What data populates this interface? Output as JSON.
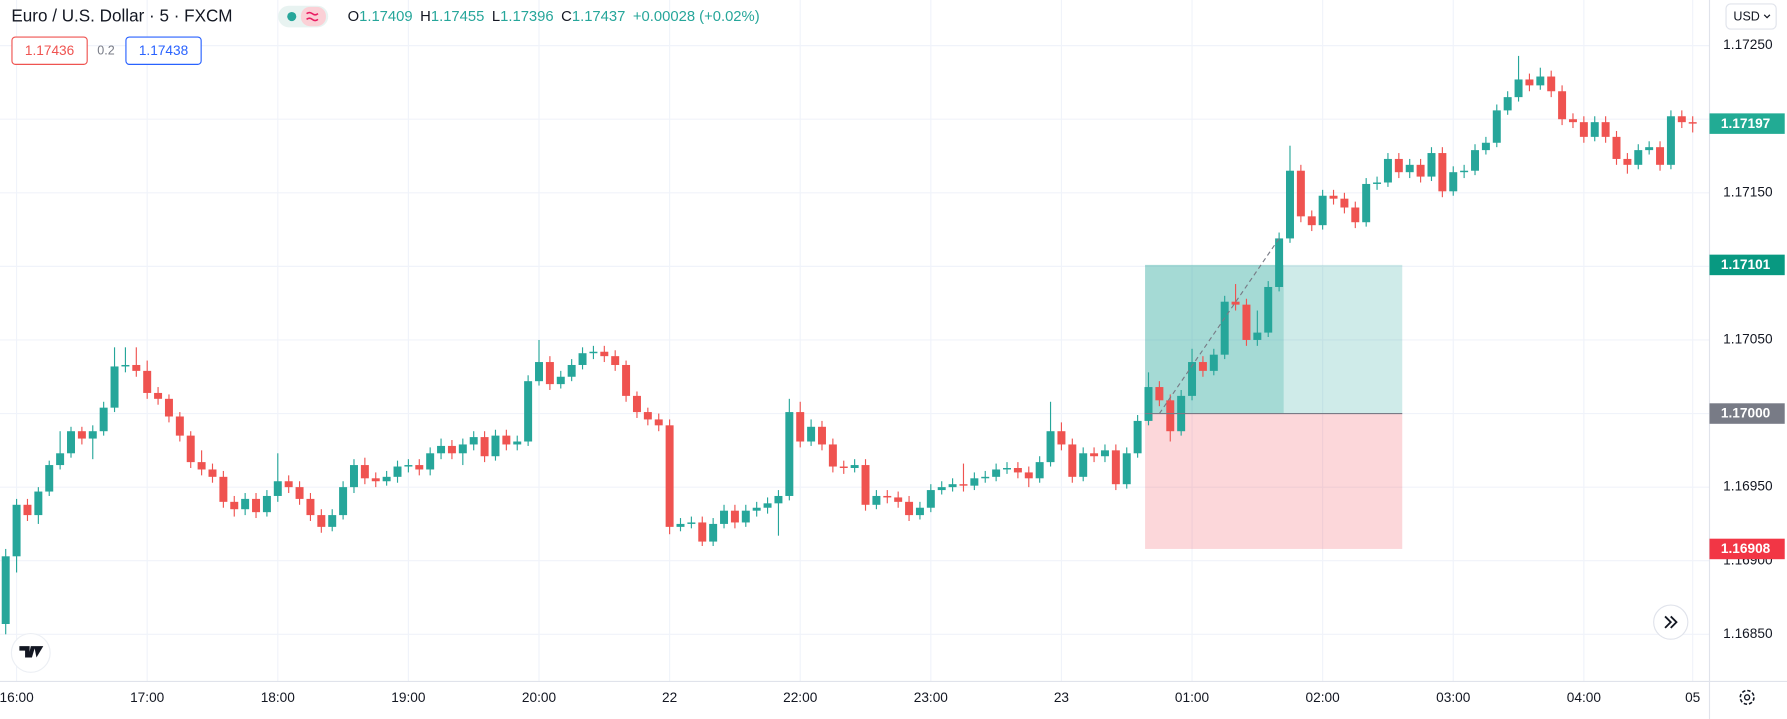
{
  "header": {
    "title": "Euro / U.S. Dollar · 5 · FXCM",
    "ohlc": [
      {
        "label": "O",
        "value": "1.17409"
      },
      {
        "label": "H",
        "value": "1.17455"
      },
      {
        "label": "L",
        "value": "1.17396"
      },
      {
        "label": "C",
        "value": "1.17437"
      }
    ],
    "change": "+0.00028 (+0.02%)",
    "quote": {
      "sell": "1.17436",
      "spread": "0.2",
      "buy": "1.17438"
    },
    "currency": "USD"
  },
  "chart_data": {
    "type": "candlestick",
    "up_color": "#26a69a",
    "down_color": "#ef5350",
    "grid": true,
    "ylim": [
      1.16818,
      1.17281
    ],
    "yticks": [
      {
        "value": 1.1725,
        "label": "1.17250"
      },
      {
        "value": 1.172,
        "label": "1.17200"
      },
      {
        "value": 1.1715,
        "label": "1.17150"
      },
      {
        "value": 1.171,
        "label": "1.17100"
      },
      {
        "value": 1.1705,
        "label": "1.17050"
      },
      {
        "value": 1.17,
        "label": "1.17000"
      },
      {
        "value": 1.1695,
        "label": "1.16950"
      },
      {
        "value": 1.169,
        "label": "1.16900"
      },
      {
        "value": 1.1685,
        "label": "1.16850"
      }
    ],
    "categories": [
      null,
      "16:00",
      null,
      null,
      null,
      null,
      null,
      null,
      null,
      null,
      null,
      null,
      null,
      "17:00",
      null,
      null,
      null,
      null,
      null,
      null,
      null,
      null,
      null,
      null,
      null,
      "18:00",
      null,
      null,
      null,
      null,
      null,
      null,
      null,
      null,
      null,
      null,
      null,
      "19:00",
      null,
      null,
      null,
      null,
      null,
      null,
      null,
      null,
      null,
      null,
      null,
      "20:00",
      null,
      null,
      null,
      null,
      null,
      null,
      null,
      null,
      null,
      null,
      null,
      "22",
      null,
      null,
      null,
      null,
      null,
      null,
      null,
      null,
      null,
      null,
      null,
      "22:00",
      null,
      null,
      null,
      null,
      null,
      null,
      null,
      null,
      null,
      null,
      null,
      "23:00",
      null,
      null,
      null,
      null,
      null,
      null,
      null,
      null,
      null,
      null,
      null,
      "23",
      null,
      null,
      null,
      null,
      null,
      null,
      null,
      null,
      null,
      null,
      null,
      "01:00",
      null,
      null,
      null,
      null,
      null,
      null,
      null,
      null,
      null,
      null,
      null,
      "02:00",
      null,
      null,
      null,
      null,
      null,
      null,
      null,
      null,
      null,
      null,
      null,
      "03:00",
      null,
      null,
      null,
      null,
      null,
      null,
      null,
      null,
      null,
      null,
      null,
      "04:00",
      null,
      null,
      null,
      null,
      null,
      null,
      null,
      null,
      null,
      "05"
    ],
    "open": [
      1.16857,
      1.16903,
      1.16938,
      1.16931,
      1.16947,
      1.16965,
      1.16973,
      1.16988,
      1.16983,
      1.16988,
      1.17004,
      1.17032,
      1.17033,
      1.17029,
      1.17014,
      1.1701,
      1.16998,
      1.16985,
      1.16967,
      1.16962,
      1.16957,
      1.1694,
      1.16935,
      1.16942,
      1.16933,
      1.16944,
      1.16954,
      1.1695,
      1.16942,
      1.16931,
      1.16923,
      1.16931,
      1.1695,
      1.16965,
      1.16956,
      1.16954,
      1.16957,
      1.16964,
      1.16965,
      1.16962,
      1.16973,
      1.16978,
      1.16973,
      1.16979,
      1.16984,
      1.16971,
      1.16985,
      1.16979,
      1.16981,
      1.17022,
      1.17035,
      1.1702,
      1.17025,
      1.17033,
      1.17041,
      1.17042,
      1.17039,
      1.17033,
      1.17012,
      1.17001,
      1.16996,
      1.16992,
      1.16923,
      1.16925,
      1.16926,
      1.16913,
      1.16925,
      1.16934,
      1.16926,
      1.16934,
      1.16936,
      1.16939,
      1.16944,
      1.17001,
      1.16981,
      1.16991,
      1.16979,
      1.16964,
      1.16963,
      1.16965,
      1.16938,
      1.16944,
      1.16943,
      1.1694,
      1.16931,
      1.16936,
      1.16948,
      1.1695,
      1.16952,
      1.16951,
      1.16956,
      1.16957,
      1.16962,
      1.16963,
      1.1696,
      1.16956,
      1.16967,
      1.16988,
      1.16979,
      1.16957,
      1.16973,
      1.16971,
      1.16975,
      1.16952,
      1.16973,
      1.16995,
      1.17018,
      1.17009,
      1.16988,
      1.17012,
      1.17035,
      1.17029,
      1.1704,
      1.17076,
      1.17074,
      1.1705,
      1.17055,
      1.17086,
      1.17119,
      1.17165,
      1.17134,
      1.17128,
      1.17148,
      1.17146,
      1.1714,
      1.1713,
      1.17156,
      1.17157,
      1.17173,
      1.17164,
      1.17169,
      1.17161,
      1.17177,
      1.17151,
      1.17164,
      1.17165,
      1.17179,
      1.17184,
      1.17206,
      1.17215,
      1.17227,
      1.17223,
      1.17229,
      1.17219,
      1.172,
      1.17198,
      1.17188,
      1.17198,
      1.17188,
      1.17173,
      1.17169,
      1.17179,
      1.17181,
      1.17169,
      1.17202,
      1.17198
    ],
    "high": [
      1.16908,
      1.16942,
      1.16942,
      1.1695,
      1.16968,
      1.16988,
      1.16991,
      1.16991,
      1.16992,
      1.17008,
      1.17045,
      1.17045,
      1.17045,
      1.17036,
      1.17018,
      1.17013,
      1.17001,
      1.16988,
      1.16975,
      1.16966,
      1.16961,
      1.16944,
      1.16946,
      1.16946,
      1.16948,
      1.16973,
      1.16958,
      1.16954,
      1.16946,
      1.16935,
      1.16935,
      1.16954,
      1.16969,
      1.1697,
      1.1696,
      1.16961,
      1.16968,
      1.16969,
      1.16969,
      1.16977,
      1.16983,
      1.16982,
      1.16983,
      1.16988,
      1.16988,
      1.16989,
      1.16989,
      1.16985,
      1.17026,
      1.1705,
      1.17039,
      1.17029,
      1.17037,
      1.17045,
      1.17046,
      1.17046,
      1.17043,
      1.17036,
      1.17015,
      1.17004,
      1.17,
      1.16996,
      1.16929,
      1.1693,
      1.1693,
      1.16929,
      1.16938,
      1.16938,
      1.16938,
      1.1694,
      1.16943,
      1.16948,
      1.1701,
      1.17008,
      1.16996,
      1.16995,
      1.16983,
      1.16968,
      1.16969,
      1.16969,
      1.16948,
      1.16948,
      1.16947,
      1.16944,
      1.1694,
      1.16952,
      1.16954,
      1.16956,
      1.16966,
      1.1696,
      1.16961,
      1.16966,
      1.16967,
      1.16967,
      1.16964,
      1.16971,
      1.17008,
      1.16994,
      1.16983,
      1.16977,
      1.16977,
      1.16979,
      1.16979,
      1.16977,
      1.16999,
      1.17028,
      1.17022,
      1.17013,
      1.17016,
      1.17044,
      1.17039,
      1.17044,
      1.1708,
      1.17088,
      1.17078,
      1.1707,
      1.1709,
      1.17123,
      1.17182,
      1.17169,
      1.17138,
      1.17152,
      1.17152,
      1.1715,
      1.17144,
      1.1716,
      1.17161,
      1.17177,
      1.17177,
      1.17173,
      1.17173,
      1.17181,
      1.17181,
      1.17168,
      1.17169,
      1.17183,
      1.17188,
      1.1721,
      1.17219,
      1.17243,
      1.17231,
      1.17235,
      1.17233,
      1.17223,
      1.17204,
      1.17202,
      1.17202,
      1.17202,
      1.17192,
      1.17177,
      1.17183,
      1.17185,
      1.17185,
      1.17206,
      1.17206,
      1.17202
    ],
    "low": [
      1.1685,
      1.16892,
      1.16927,
      1.16925,
      1.16944,
      1.16962,
      1.1697,
      1.16979,
      1.16969,
      1.16985,
      1.17001,
      1.17028,
      1.17025,
      1.1701,
      1.17006,
      1.16994,
      1.16981,
      1.16963,
      1.16958,
      1.16953,
      1.16936,
      1.1693,
      1.16931,
      1.16929,
      1.1693,
      1.1694,
      1.16946,
      1.16938,
      1.16927,
      1.16919,
      1.1692,
      1.16928,
      1.16946,
      1.16952,
      1.1695,
      1.16951,
      1.16953,
      1.1696,
      1.16958,
      1.16958,
      1.16969,
      1.16969,
      1.16965,
      1.16975,
      1.16967,
      1.16968,
      1.16975,
      1.16975,
      1.16978,
      1.17019,
      1.17016,
      1.17017,
      1.17022,
      1.1703,
      1.17037,
      1.17035,
      1.17029,
      1.17008,
      1.16997,
      1.16992,
      1.16988,
      1.16918,
      1.1692,
      1.16922,
      1.1691,
      1.1691,
      1.16922,
      1.16922,
      1.16923,
      1.1693,
      1.16932,
      1.16917,
      1.16941,
      1.16977,
      1.16978,
      1.16975,
      1.1696,
      1.16959,
      1.1696,
      1.16934,
      1.16935,
      1.16939,
      1.16936,
      1.16927,
      1.16928,
      1.16933,
      1.16945,
      1.16947,
      1.16947,
      1.16948,
      1.16953,
      1.16954,
      1.16959,
      1.16956,
      1.1695,
      1.16953,
      1.16964,
      1.16975,
      1.16953,
      1.16954,
      1.16967,
      1.16967,
      1.16948,
      1.16949,
      1.1697,
      1.16992,
      1.17005,
      1.16981,
      1.16985,
      1.17009,
      1.17025,
      1.17026,
      1.17037,
      1.1707,
      1.17046,
      1.17046,
      1.17052,
      1.17083,
      1.17116,
      1.1713,
      1.17124,
      1.17125,
      1.17142,
      1.17136,
      1.17126,
      1.17127,
      1.17152,
      1.17154,
      1.1716,
      1.1716,
      1.17157,
      1.17158,
      1.17147,
      1.17148,
      1.1716,
      1.17162,
      1.17176,
      1.17181,
      1.17203,
      1.17212,
      1.17219,
      1.1722,
      1.17215,
      1.17196,
      1.17194,
      1.17184,
      1.17185,
      1.17184,
      1.17169,
      1.17163,
      1.17166,
      1.17176,
      1.17165,
      1.17166,
      1.17194,
      1.17191
    ],
    "close": [
      1.16903,
      1.16938,
      1.16931,
      1.16947,
      1.16965,
      1.16973,
      1.16988,
      1.16983,
      1.16988,
      1.17004,
      1.17032,
      1.17033,
      1.17029,
      1.17014,
      1.1701,
      1.16998,
      1.16985,
      1.16967,
      1.16962,
      1.16957,
      1.1694,
      1.16935,
      1.16942,
      1.16933,
      1.16944,
      1.16954,
      1.1695,
      1.16942,
      1.16931,
      1.16923,
      1.16931,
      1.1695,
      1.16965,
      1.16956,
      1.16954,
      1.16957,
      1.16964,
      1.16965,
      1.16962,
      1.16973,
      1.16978,
      1.16973,
      1.16979,
      1.16984,
      1.16971,
      1.16985,
      1.16979,
      1.16981,
      1.17022,
      1.17035,
      1.1702,
      1.17025,
      1.17033,
      1.17041,
      1.17042,
      1.17039,
      1.17033,
      1.17012,
      1.17001,
      1.16996,
      1.16992,
      1.16923,
      1.16925,
      1.16926,
      1.16913,
      1.16925,
      1.16934,
      1.16926,
      1.16934,
      1.16936,
      1.16939,
      1.16944,
      1.17001,
      1.16981,
      1.16991,
      1.16979,
      1.16964,
      1.16963,
      1.16965,
      1.16938,
      1.16944,
      1.16943,
      1.1694,
      1.16931,
      1.16936,
      1.16948,
      1.1695,
      1.16952,
      1.16951,
      1.16956,
      1.16957,
      1.16962,
      1.16963,
      1.1696,
      1.16956,
      1.16967,
      1.16988,
      1.16979,
      1.16957,
      1.16973,
      1.16971,
      1.16975,
      1.16952,
      1.16973,
      1.16995,
      1.17018,
      1.17009,
      1.16988,
      1.17012,
      1.17035,
      1.17029,
      1.1704,
      1.17076,
      1.17074,
      1.1705,
      1.17055,
      1.17086,
      1.17119,
      1.17165,
      1.17134,
      1.17128,
      1.17148,
      1.17146,
      1.1714,
      1.1713,
      1.17156,
      1.17157,
      1.17173,
      1.17164,
      1.17169,
      1.17161,
      1.17177,
      1.17151,
      1.17164,
      1.17165,
      1.17179,
      1.17184,
      1.17206,
      1.17215,
      1.17227,
      1.17223,
      1.17229,
      1.17219,
      1.172,
      1.17198,
      1.17188,
      1.17198,
      1.17188,
      1.17173,
      1.17169,
      1.17179,
      1.17181,
      1.17169,
      1.17202,
      1.17198,
      1.17197
    ],
    "position": {
      "entry": {
        "value": 1.17,
        "label": "1.17000"
      },
      "target": 1.17101,
      "stop": 1.16908
    }
  }
}
